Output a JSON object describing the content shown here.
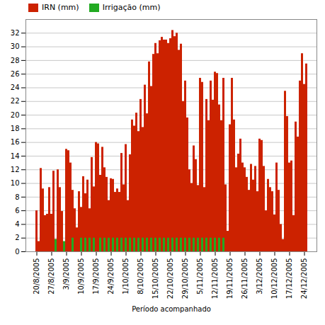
{
  "chart_data": {
    "type": "bar",
    "xlabel": "Período acompanhado",
    "categories": [
      "20/8/2005",
      null,
      null,
      null,
      null,
      null,
      null,
      "27/8/2005",
      null,
      null,
      null,
      null,
      null,
      null,
      "3/9/2005",
      null,
      null,
      null,
      null,
      null,
      null,
      "10/9/2005",
      null,
      null,
      null,
      null,
      null,
      null,
      "17/9/2005",
      null,
      null,
      null,
      null,
      null,
      null,
      "24/9/2005",
      null,
      null,
      null,
      null,
      null,
      null,
      "1/10/2005",
      null,
      null,
      null,
      null,
      null,
      null,
      "8/10/2005",
      null,
      null,
      null,
      null,
      null,
      null,
      "15/10/2005",
      null,
      null,
      null,
      null,
      null,
      null,
      "22/10/2005",
      null,
      null,
      null,
      null,
      null,
      null,
      "29/10/2005",
      null,
      null,
      null,
      null,
      null,
      null,
      "5/11/2005",
      null,
      null,
      null,
      null,
      null,
      null,
      "12/11/2005",
      null,
      null,
      null,
      null,
      null,
      null,
      "19/11/2005",
      null,
      null,
      null,
      null,
      null,
      null,
      "26/11/2005",
      null,
      null,
      null,
      null,
      null,
      null,
      "3/12/2005",
      null,
      null,
      null,
      null,
      null,
      null,
      "10/12/2005",
      null,
      null,
      null,
      null,
      null,
      null,
      "17/12/2005",
      null,
      null,
      null,
      null,
      null,
      null,
      "24/12/2005",
      null
    ],
    "series": [
      {
        "name": "IRN (mm)",
        "color": "#cc2200",
        "values": [
          6.0,
          1.5,
          12.2,
          9.2,
          5.3,
          5.5,
          9.4,
          5.5,
          11.8,
          1.8,
          12.0,
          9.4,
          5.9,
          1.2,
          15.0,
          14.8,
          13.0,
          9.0,
          6.3,
          3.5,
          8.8,
          6.5,
          11.0,
          8.5,
          10.5,
          6.3,
          13.8,
          9.5,
          16.0,
          15.8,
          11.2,
          15.3,
          12.3,
          10.9,
          7.5,
          10.7,
          10.6,
          8.7,
          9.2,
          8.7,
          14.4,
          9.8,
          15.7,
          7.5,
          14.2,
          19.3,
          18.4,
          20.3,
          17.6,
          22.3,
          18.2,
          24.4,
          20.2,
          27.8,
          24.2,
          28.9,
          30.5,
          29.0,
          30.9,
          31.4,
          31.0,
          31.0,
          30.5,
          31.2,
          32.4,
          31.5,
          32.0,
          29.5,
          30.4,
          22.0,
          25.0,
          19.6,
          12.0,
          10.0,
          15.5,
          13.5,
          9.7,
          25.4,
          24.8,
          9.4,
          22.3,
          19.2,
          25.0,
          22.2,
          26.3,
          26.1,
          21.5,
          19.2,
          25.4,
          9.8,
          3.0,
          18.6,
          25.4,
          19.3,
          12.3,
          14.3,
          16.5,
          13.0,
          12.3,
          10.9,
          9.0,
          12.8,
          10.5,
          12.5,
          8.8,
          16.5,
          16.3,
          12.5,
          6.0,
          10.6,
          9.4,
          8.8,
          5.4,
          13.0,
          9.0,
          4.0,
          1.8,
          23.5,
          19.8,
          13.0,
          13.3,
          5.3,
          19.0,
          16.8,
          25.0,
          29.0,
          24.5,
          27.5
        ]
      },
      {
        "name": "Irrigação (mm)",
        "color": "#22aa22",
        "values": [
          0.0,
          0.0,
          0.0,
          0.0,
          0.0,
          0.0,
          0.0,
          0.0,
          0.0,
          1.8,
          0.0,
          0.0,
          0.0,
          1.5,
          0.0,
          0.0,
          0.0,
          2.0,
          0.0,
          0.0,
          0.0,
          2.0,
          0.0,
          2.0,
          0.0,
          2.0,
          0.0,
          2.0,
          0.0,
          0.0,
          2.0,
          0.0,
          2.0,
          0.0,
          2.0,
          0.0,
          2.0,
          0.0,
          2.0,
          0.0,
          2.0,
          0.0,
          2.0,
          0.0,
          2.0,
          0.0,
          2.0,
          0.0,
          2.0,
          0.0,
          2.0,
          0.0,
          2.0,
          0.0,
          2.0,
          0.0,
          2.0,
          0.0,
          2.0,
          0.0,
          2.0,
          0.0,
          2.0,
          0.0,
          2.0,
          0.0,
          2.0,
          0.0,
          2.0,
          0.0,
          2.0,
          0.0,
          2.0,
          0.0,
          2.0,
          0.0,
          2.0,
          0.0,
          2.0,
          0.0,
          2.0,
          0.0,
          2.0,
          0.0,
          2.0,
          0.0,
          2.0,
          0.0,
          2.0,
          0.0,
          0.0,
          0.0,
          0.0,
          0.0,
          0.0,
          0.0,
          0.0,
          0.0,
          0.0,
          0.0,
          0.0,
          0.0,
          0.0,
          0.0,
          0.0,
          0.0,
          0.0,
          0.0,
          0.0,
          0.0,
          0.0,
          0.0,
          0.0,
          0.0,
          0.0,
          0.0,
          0.0,
          0.0,
          0.0,
          0.0,
          0.0,
          0.0,
          0.0,
          0.0,
          0.0,
          0.0,
          0.0,
          0.0
        ]
      }
    ],
    "stacked": false,
    "ylim": [
      0,
      34
    ],
    "yticks": [
      0,
      2,
      4,
      6,
      8,
      10,
      12,
      14,
      16,
      18,
      20,
      22,
      24,
      26,
      28,
      30,
      32
    ],
    "grid": true,
    "legend": "upper left"
  }
}
